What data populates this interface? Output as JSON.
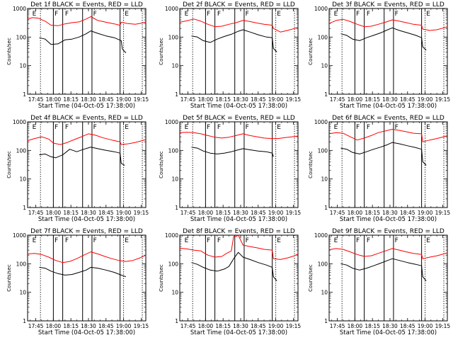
{
  "chart_data": {
    "type": "line",
    "y_scale": "log",
    "ylim": [
      1,
      1000
    ],
    "y_ticks": [
      "1",
      "10",
      "100",
      "1000"
    ],
    "x_range": [
      "17:38",
      "19:19"
    ],
    "x_ticks": [
      "17:45",
      "18:00",
      "18:15",
      "18:30",
      "18:45",
      "19:00",
      "19:15"
    ],
    "xlabel": "Start Time (04-Oct-05 17:38:00)",
    "ylabel": "Counts/sec",
    "grid": false,
    "colors": {
      "events": "#000000",
      "lld": "#ff0000"
    },
    "interval_boundaries_solid": [
      "18:00",
      "18:08",
      "18:25",
      "18:33",
      "18:57"
    ],
    "interval_boundaries_dotted": [
      "17:49",
      "19:00",
      "19:16"
    ],
    "flags": [
      {
        "label": "E",
        "time": "17:42"
      },
      {
        "label": "F",
        "time": "18:01"
      },
      {
        "label": "F",
        "time": "18:10"
      },
      {
        "label": "F",
        "time": "18:34"
      },
      {
        "label": "E",
        "time": "19:01"
      }
    ],
    "panels": [
      {
        "title": "Det 1f BLACK = Events, RED = LLD",
        "series": [
          {
            "key": "lld",
            "x": [
              "17:38",
              "17:42",
              "17:47",
              "17:53",
              "17:58",
              "18:04",
              "18:10",
              "18:16",
              "18:22",
              "18:28",
              "18:32",
              "18:38",
              "18:45",
              "18:52",
              "18:57",
              "18:58",
              "19:03",
              "19:10",
              "19:16",
              "19:19"
            ],
            "values": [
              420,
              480,
              460,
              360,
              260,
              250,
              290,
              320,
              340,
              430,
              520,
              380,
              330,
              290,
              260,
              330,
              300,
              280,
              310,
              340
            ]
          },
          {
            "key": "events",
            "x": [
              "17:48",
              "17:53",
              "17:58",
              "18:04",
              "18:10",
              "18:16",
              "18:22",
              "18:28",
              "18:32",
              "18:38",
              "18:45",
              "18:52",
              "18:58",
              "18:59",
              "19:02"
            ],
            "values": [
              95,
              85,
              55,
              58,
              80,
              85,
              100,
              130,
              165,
              135,
              110,
              95,
              75,
              38,
              28
            ]
          }
        ]
      },
      {
        "title": "Det 2f BLACK = Events, RED = LLD",
        "series": [
          {
            "key": "lld",
            "x": [
              "17:38",
              "17:44",
              "17:50",
              "17:56",
              "18:02",
              "18:08",
              "18:14",
              "18:20",
              "18:26",
              "18:32",
              "18:38",
              "18:44",
              "18:50",
              "18:57",
              "18:58",
              "19:04",
              "19:10",
              "19:16",
              "19:19"
            ],
            "values": [
              330,
              370,
              430,
              360,
              280,
              230,
              240,
              280,
              320,
              380,
              350,
              310,
              280,
              260,
              200,
              150,
              170,
              200,
              220
            ]
          },
          {
            "key": "events",
            "x": [
              "17:48",
              "17:53",
              "17:58",
              "18:04",
              "18:10",
              "18:16",
              "18:22",
              "18:28",
              "18:32",
              "18:38",
              "18:45",
              "18:52",
              "18:57",
              "18:58",
              "19:01"
            ],
            "values": [
              110,
              100,
              75,
              65,
              85,
              105,
              125,
              160,
              180,
              150,
              120,
              100,
              95,
              40,
              30
            ]
          }
        ]
      },
      {
        "title": "Det 3f BLACK = Events, RED = LLD",
        "series": [
          {
            "key": "lld",
            "x": [
              "17:38",
              "17:44",
              "17:50",
              "17:56",
              "18:02",
              "18:08",
              "18:14",
              "18:20",
              "18:26",
              "18:32",
              "18:38",
              "18:44",
              "18:50",
              "18:57",
              "18:58",
              "19:04",
              "19:10",
              "19:16",
              "19:19"
            ],
            "values": [
              300,
              380,
              420,
              350,
              280,
              230,
              240,
              280,
              330,
              400,
              360,
              320,
              280,
              260,
              190,
              170,
              180,
              210,
              230
            ]
          },
          {
            "key": "events",
            "x": [
              "17:48",
              "17:53",
              "17:58",
              "18:04",
              "18:10",
              "18:16",
              "18:22",
              "18:28",
              "18:32",
              "18:38",
              "18:45",
              "18:52",
              "18:57",
              "18:58",
              "19:01"
            ],
            "values": [
              130,
              115,
              85,
              75,
              95,
              115,
              140,
              180,
              210,
              170,
              140,
              115,
              95,
              45,
              35
            ]
          }
        ]
      },
      {
        "title": "Det 4f BLACK = Events, RED = LLD",
        "series": [
          {
            "key": "lld",
            "x": [
              "17:38",
              "17:44",
              "17:50",
              "17:56",
              "18:00",
              "18:06",
              "18:12",
              "18:18",
              "18:24",
              "18:30",
              "18:36",
              "18:42",
              "18:50",
              "18:57",
              "18:58",
              "19:04",
              "19:10",
              "19:16",
              "19:19"
            ],
            "values": [
              220,
              260,
              300,
              250,
              180,
              160,
              190,
              240,
              300,
              380,
              340,
              280,
              230,
              200,
              160,
              170,
              190,
              220,
              240
            ]
          },
          {
            "key": "events",
            "x": [
              "17:48",
              "17:53",
              "17:58",
              "18:02",
              "18:08",
              "18:14",
              "18:20",
              "18:26",
              "18:32",
              "18:38",
              "18:45",
              "18:52",
              "18:57",
              "18:58",
              "19:01"
            ],
            "values": [
              70,
              75,
              60,
              55,
              70,
              110,
              90,
              110,
              130,
              115,
              100,
              90,
              80,
              35,
              30
            ]
          }
        ]
      },
      {
        "title": "Det 5f BLACK = Events, RED = LLD",
        "series": [
          {
            "key": "lld",
            "x": [
              "17:38",
              "17:44",
              "17:50",
              "17:56",
              "18:02",
              "18:08",
              "18:14",
              "18:20",
              "18:26",
              "18:32",
              "18:38",
              "18:44",
              "18:50",
              "18:56",
              "19:02",
              "19:08",
              "19:14",
              "19:19"
            ],
            "values": [
              420,
              430,
              420,
              380,
              330,
              290,
              270,
              290,
              330,
              380,
              330,
              300,
              270,
              260,
              260,
              280,
              300,
              320
            ]
          },
          {
            "key": "events",
            "x": [
              "17:48",
              "17:53",
              "17:58",
              "18:04",
              "18:10",
              "18:16",
              "18:22",
              "18:28",
              "18:32",
              "18:38",
              "18:45",
              "18:52",
              "18:57",
              "18:58"
            ],
            "values": [
              130,
              120,
              95,
              80,
              75,
              80,
              90,
              105,
              115,
              105,
              95,
              90,
              80,
              60
            ]
          }
        ]
      },
      {
        "title": "Det 6f BLACK = Events, RED = LLD",
        "series": [
          {
            "key": "lld",
            "x": [
              "17:38",
              "17:44",
              "17:50",
              "17:56",
              "18:02",
              "18:08",
              "18:14",
              "18:20",
              "18:26",
              "18:32",
              "18:38",
              "18:44",
              "18:50",
              "18:57",
              "18:58",
              "19:04",
              "19:10",
              "19:16",
              "19:19"
            ],
            "values": [
              380,
              420,
              400,
              300,
              230,
              270,
              330,
              420,
              480,
              550,
              500,
              450,
              400,
              380,
              200,
              230,
              260,
              300,
              330
            ]
          },
          {
            "key": "events",
            "x": [
              "17:48",
              "17:53",
              "17:58",
              "18:04",
              "18:10",
              "18:16",
              "18:22",
              "18:28",
              "18:32",
              "18:38",
              "18:45",
              "18:52",
              "18:57",
              "18:58",
              "19:01"
            ],
            "values": [
              120,
              110,
              85,
              75,
              90,
              110,
              130,
              160,
              190,
              170,
              145,
              125,
              110,
              40,
              30
            ]
          }
        ]
      },
      {
        "title": "Det 7f BLACK = Events, RED = LLD",
        "series": [
          {
            "key": "lld",
            "x": [
              "17:38",
              "17:44",
              "17:50",
              "17:56",
              "18:02",
              "18:08",
              "18:14",
              "18:20",
              "18:26",
              "18:32",
              "18:38",
              "18:44",
              "18:50",
              "18:56",
              "19:02",
              "19:08",
              "19:14",
              "19:19"
            ],
            "values": [
              220,
              230,
              210,
              170,
              130,
              110,
              120,
              150,
              200,
              260,
              220,
              180,
              150,
              130,
              120,
              130,
              160,
              200
            ]
          },
          {
            "key": "events",
            "x": [
              "17:48",
              "17:53",
              "17:58",
              "18:04",
              "18:10",
              "18:16",
              "18:22",
              "18:28",
              "18:32",
              "18:38",
              "18:45",
              "18:52",
              "18:58",
              "19:02"
            ],
            "values": [
              75,
              70,
              55,
              45,
              40,
              42,
              50,
              60,
              75,
              70,
              60,
              50,
              40,
              35
            ]
          }
        ]
      },
      {
        "title": "Det 8f BLACK = Events, RED = LLD",
        "series": [
          {
            "key": "lld",
            "x": [
              "17:38",
              "17:44",
              "17:50",
              "17:56",
              "18:02",
              "18:08",
              "18:14",
              "18:18",
              "18:22",
              "18:24",
              "18:26",
              "18:28",
              "18:32",
              "18:38",
              "18:44",
              "18:50",
              "18:57",
              "18:58",
              "19:04",
              "19:10",
              "19:16",
              "19:19"
            ],
            "values": [
              350,
              330,
              300,
              280,
              200,
              170,
              180,
              230,
              280,
              900,
              900,
              1000,
              450,
              400,
              360,
              320,
              300,
              150,
              140,
              160,
              190,
              220
            ]
          },
          {
            "key": "events",
            "x": [
              "17:48",
              "17:53",
              "17:58",
              "18:04",
              "18:10",
              "18:16",
              "18:20",
              "18:22",
              "18:24",
              "18:28",
              "18:32",
              "18:38",
              "18:45",
              "18:52",
              "18:57",
              "18:58",
              "19:01"
            ],
            "values": [
              110,
              95,
              75,
              60,
              55,
              65,
              80,
              110,
              150,
              250,
              170,
              140,
              110,
              90,
              75,
              35,
              25
            ]
          }
        ]
      },
      {
        "title": "Det 9f BLACK = Events, RED = LLD",
        "series": [
          {
            "key": "lld",
            "x": [
              "17:38",
              "17:44",
              "17:50",
              "17:56",
              "18:02",
              "18:08",
              "18:14",
              "18:20",
              "18:26",
              "18:32",
              "18:38",
              "18:44",
              "18:50",
              "18:57",
              "18:58",
              "19:04",
              "19:10",
              "19:16",
              "19:19"
            ],
            "values": [
              310,
              340,
              320,
              260,
              210,
              180,
              190,
              230,
              280,
              340,
              300,
              260,
              230,
              210,
              150,
              170,
              190,
              220,
              240
            ]
          },
          {
            "key": "events",
            "x": [
              "17:48",
              "17:53",
              "17:58",
              "18:04",
              "18:10",
              "18:16",
              "18:22",
              "18:28",
              "18:32",
              "18:38",
              "18:45",
              "18:52",
              "18:57",
              "18:58",
              "19:01"
            ],
            "values": [
              100,
              90,
              70,
              60,
              70,
              85,
              105,
              130,
              150,
              130,
              110,
              95,
              85,
              35,
              25
            ]
          }
        ]
      }
    ]
  }
}
